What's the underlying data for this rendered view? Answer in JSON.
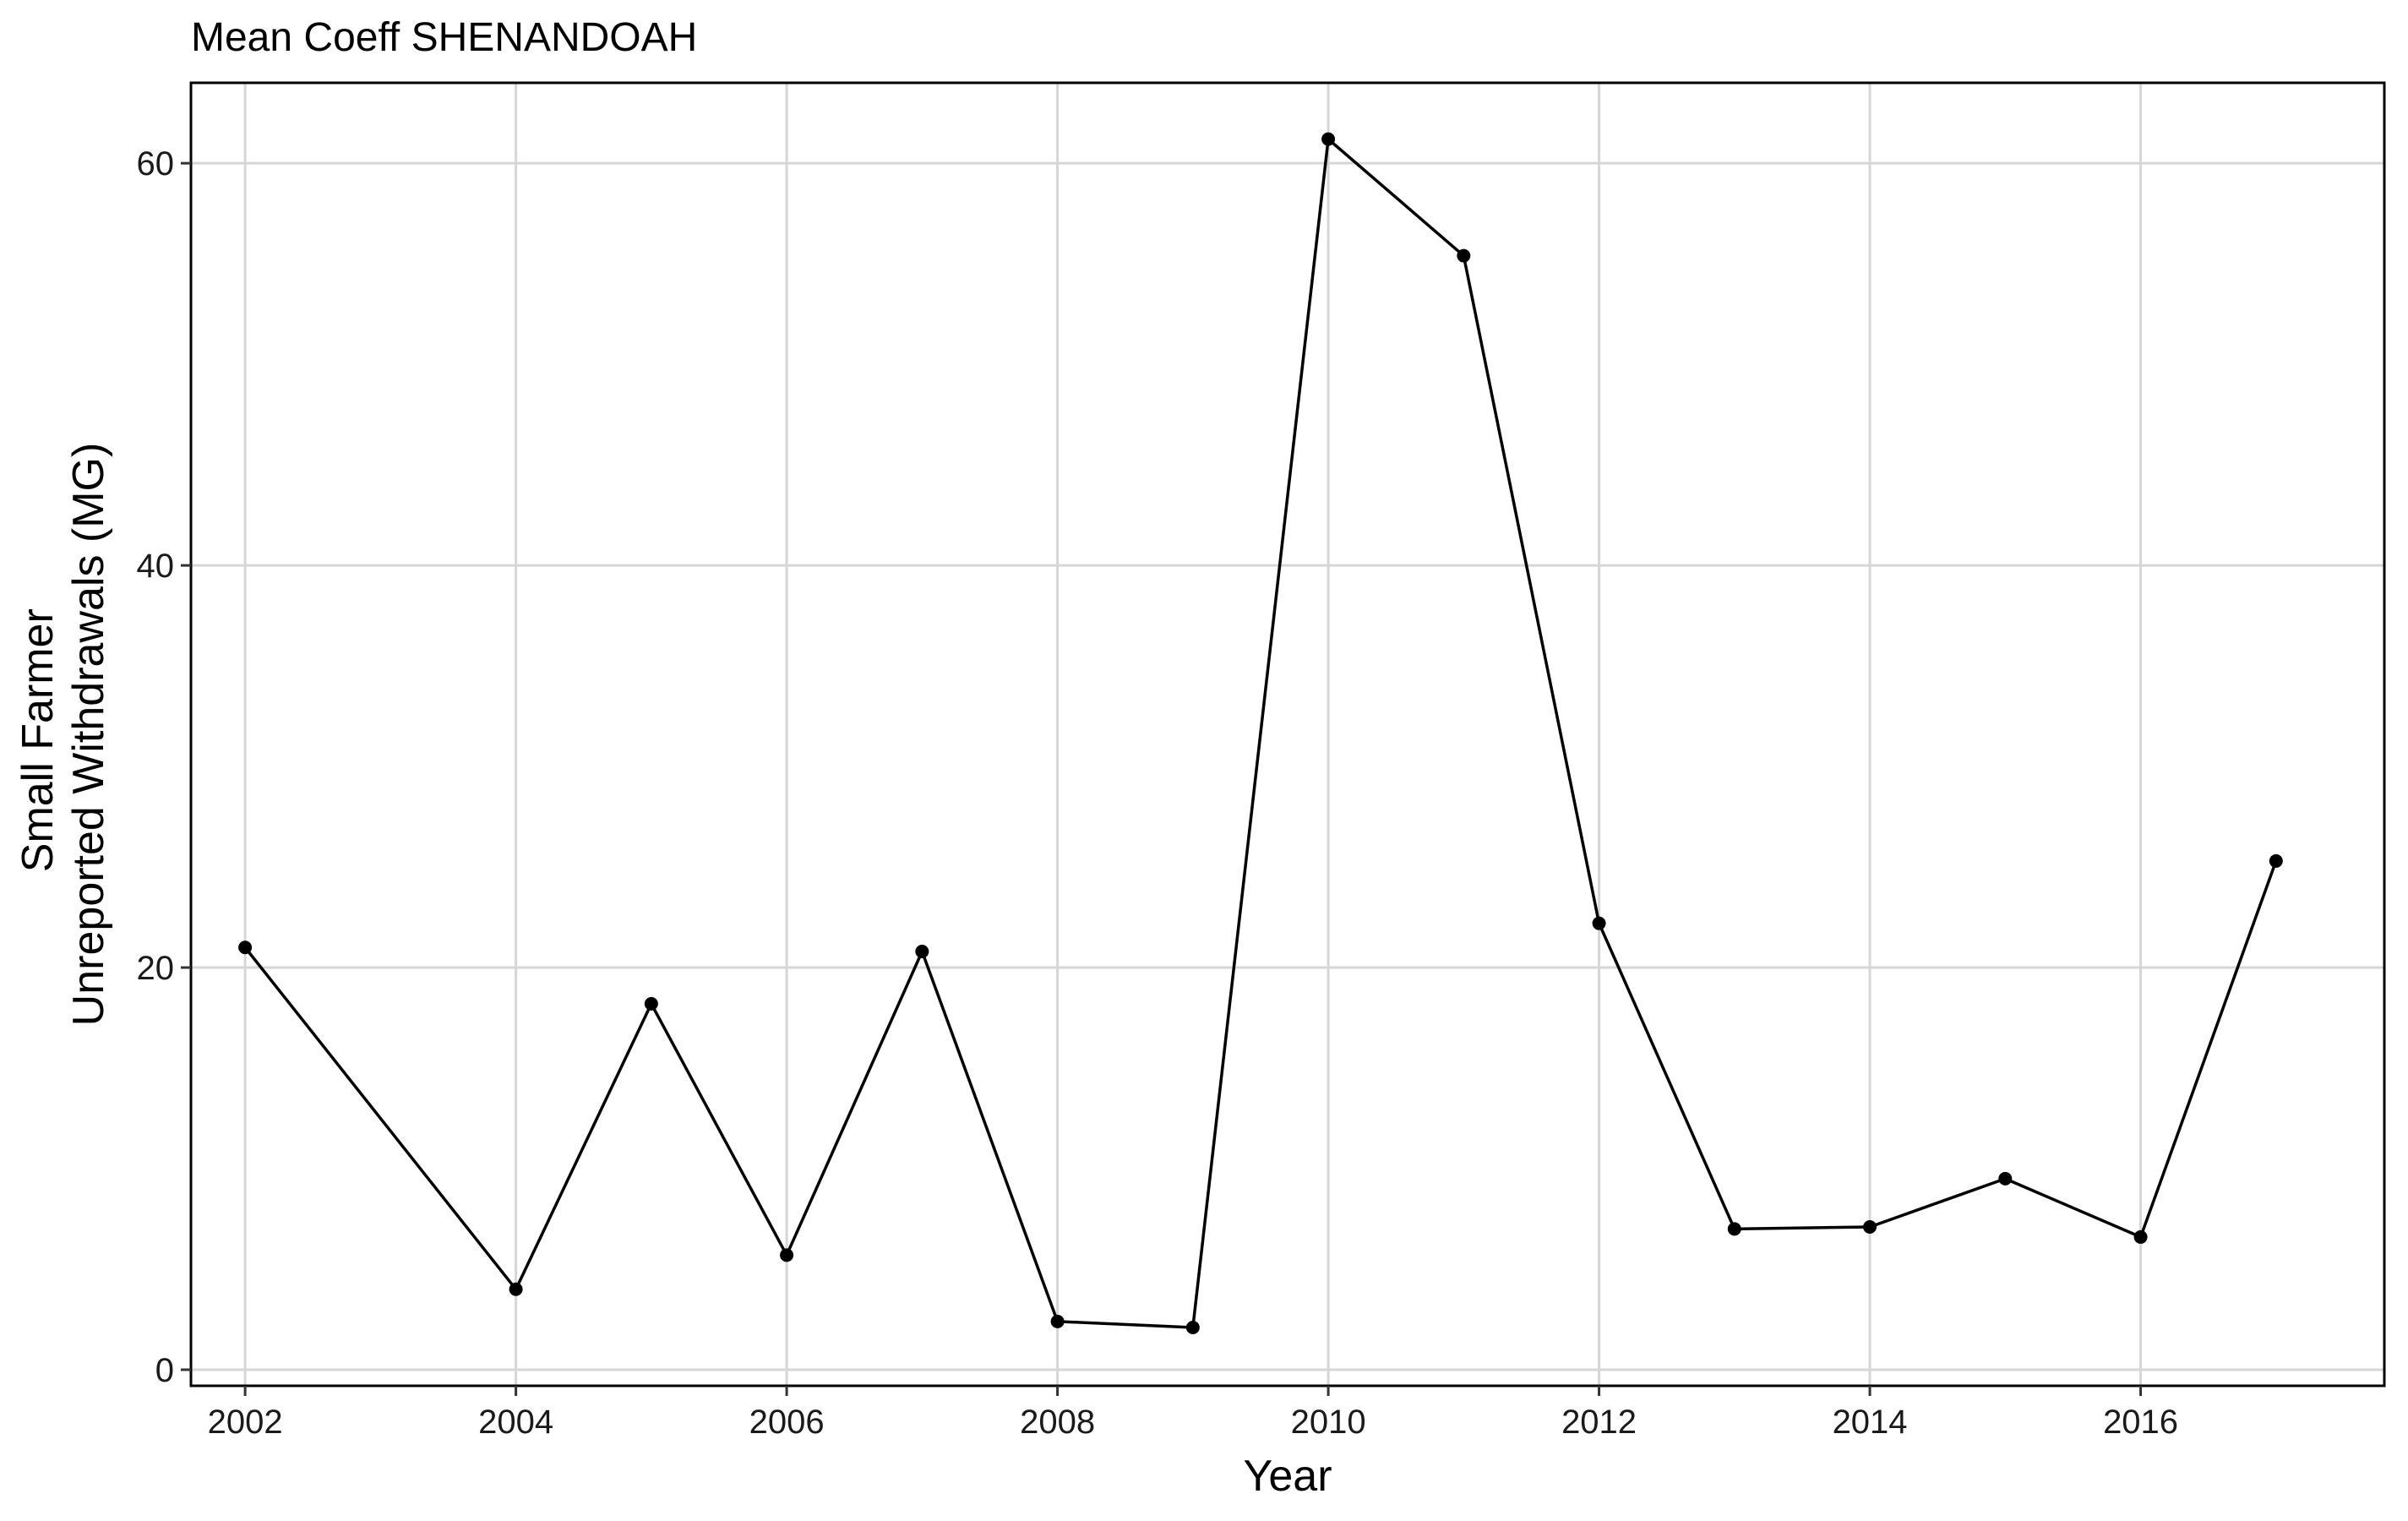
{
  "chart_data": {
    "type": "line",
    "title": "Mean Coeff SHENANDOAH",
    "xlabel": "Year",
    "ylabel": [
      "Small Farmer",
      "Unreported Withdrawals (MG)"
    ],
    "xlim": [
      2001.6,
      2017.8
    ],
    "ylim": [
      -0.8,
      64.0
    ],
    "x_ticks": [
      2002,
      2004,
      2006,
      2008,
      2010,
      2012,
      2014,
      2016
    ],
    "x_tick_labels": [
      "2002",
      "2004",
      "2006",
      "2008",
      "2010",
      "2012",
      "2014",
      "2016"
    ],
    "y_ticks": [
      0,
      20,
      40,
      60
    ],
    "y_tick_labels": [
      "0",
      "20",
      "40",
      "60"
    ],
    "grid": true,
    "series": [
      {
        "x": [
          2002,
          2004,
          2005,
          2006,
          2007,
          2008,
          2009,
          2010,
          2011,
          2012,
          2013,
          2014,
          2015,
          2016,
          2017
        ],
        "y": [
          21.0,
          4.0,
          18.2,
          5.7,
          20.8,
          2.4,
          2.1,
          61.2,
          55.4,
          22.2,
          7.0,
          7.1,
          9.5,
          6.6,
          25.3
        ]
      }
    ],
    "colors": {
      "line": "#000000",
      "point": "#000000",
      "grid": "#d6d6d6",
      "background": "#ffffff"
    }
  }
}
